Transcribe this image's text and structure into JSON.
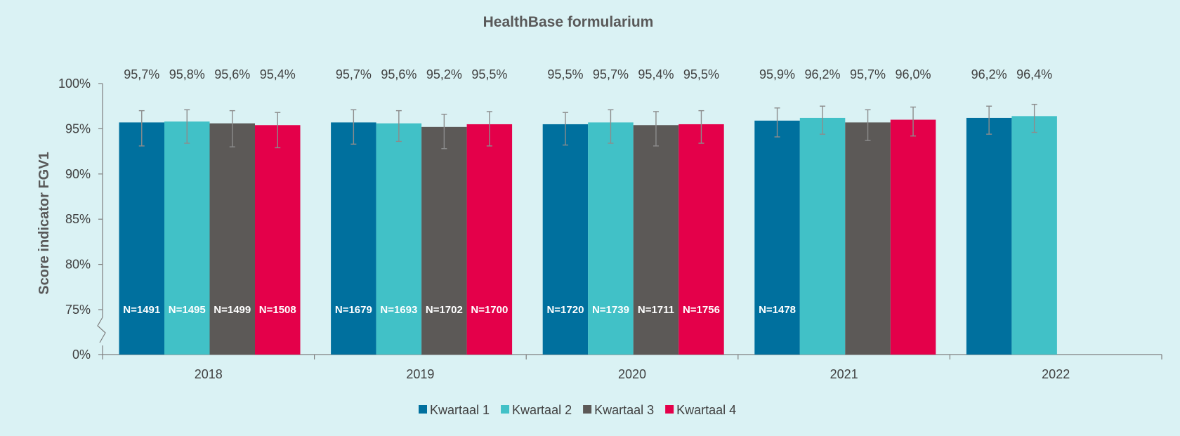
{
  "chart_data": {
    "type": "bar",
    "title": "HealthBase formularium",
    "ylabel": "Score indicator FGV1",
    "xlabel": "",
    "categories": [
      "2018",
      "2019",
      "2020",
      "2021",
      "2022"
    ],
    "y_ticks": [
      {
        "value": 0,
        "label": "0%"
      },
      {
        "value": 75,
        "label": "75%"
      },
      {
        "value": 80,
        "label": "80%"
      },
      {
        "value": 85,
        "label": "85%"
      },
      {
        "value": 90,
        "label": "90%"
      },
      {
        "value": 95,
        "label": "95%"
      },
      {
        "value": 100,
        "label": "100%"
      }
    ],
    "axis_break": {
      "from": 0,
      "to": 75
    },
    "ylim": [
      0,
      100
    ],
    "grid": false,
    "legend_position": "bottom",
    "series": [
      {
        "name": "Kwartaal 1",
        "color": "#00709e",
        "values": [
          95.7,
          95.7,
          95.5,
          95.9,
          96.2
        ],
        "labels": [
          "95,7%",
          "95,7%",
          "95,5%",
          "95,9%",
          "96,2%"
        ],
        "n_labels": [
          "N=1491",
          "N=1679",
          "N=1720",
          "N=1478",
          ""
        ],
        "err_low": [
          93.1,
          93.3,
          93.2,
          94.1,
          94.4
        ],
        "err_high": [
          97.0,
          97.1,
          96.8,
          97.3,
          97.5
        ]
      },
      {
        "name": "Kwartaal 2",
        "color": "#41c1c7",
        "values": [
          95.8,
          95.6,
          95.7,
          96.2,
          96.4
        ],
        "labels": [
          "95,8%",
          "95,6%",
          "95,7%",
          "96,2%",
          "96,4%"
        ],
        "n_labels": [
          "N=1495",
          "N=1693",
          "N=1739",
          "",
          ""
        ],
        "err_low": [
          93.4,
          93.6,
          93.4,
          94.4,
          94.6
        ],
        "err_high": [
          97.1,
          97.0,
          97.1,
          97.5,
          97.7
        ]
      },
      {
        "name": "Kwartaal 3",
        "color": "#5c5957",
        "values": [
          95.6,
          95.2,
          95.4,
          95.7,
          null
        ],
        "labels": [
          "95,6%",
          "95,2%",
          "95,4%",
          "95,7%",
          ""
        ],
        "n_labels": [
          "N=1499",
          "N=1702",
          "N=1711",
          "",
          ""
        ],
        "err_low": [
          93.0,
          92.8,
          93.1,
          93.7,
          null
        ],
        "err_high": [
          97.0,
          96.6,
          96.9,
          97.1,
          null
        ]
      },
      {
        "name": "Kwartaal 4",
        "color": "#e4004a",
        "values": [
          95.4,
          95.5,
          95.5,
          96.0,
          null
        ],
        "labels": [
          "95,4%",
          "95,5%",
          "95,5%",
          "96,0%",
          ""
        ],
        "n_labels": [
          "N=1508",
          "N=1700",
          "N=1756",
          "",
          ""
        ],
        "err_low": [
          92.9,
          93.1,
          93.4,
          94.2,
          null
        ],
        "err_high": [
          96.8,
          96.9,
          97.0,
          97.4,
          null
        ]
      }
    ]
  }
}
